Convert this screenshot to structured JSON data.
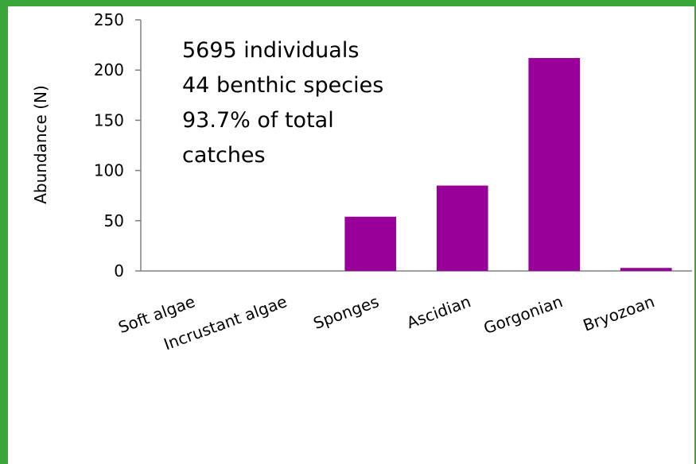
{
  "chart_data": {
    "type": "bar",
    "categories": [
      "Soft algae",
      "Incrustant algae",
      "Sponges",
      "Ascidian",
      "Gorgonian",
      "Bryozoan"
    ],
    "values": [
      0,
      0,
      54,
      85,
      212,
      3
    ],
    "ylabel": "Abundance (N)",
    "xlabel": "",
    "ylim": [
      0,
      250
    ],
    "yticks": [
      0,
      50,
      100,
      150,
      200,
      250
    ],
    "grid": false,
    "legend": "none",
    "bar_color": "#990099",
    "annotation": [
      "5695 individuals",
      "44 benthic species",
      "93.7% of total",
      "catches"
    ]
  },
  "colors": {
    "frame": "#3aa63a",
    "axis": "#808080"
  }
}
